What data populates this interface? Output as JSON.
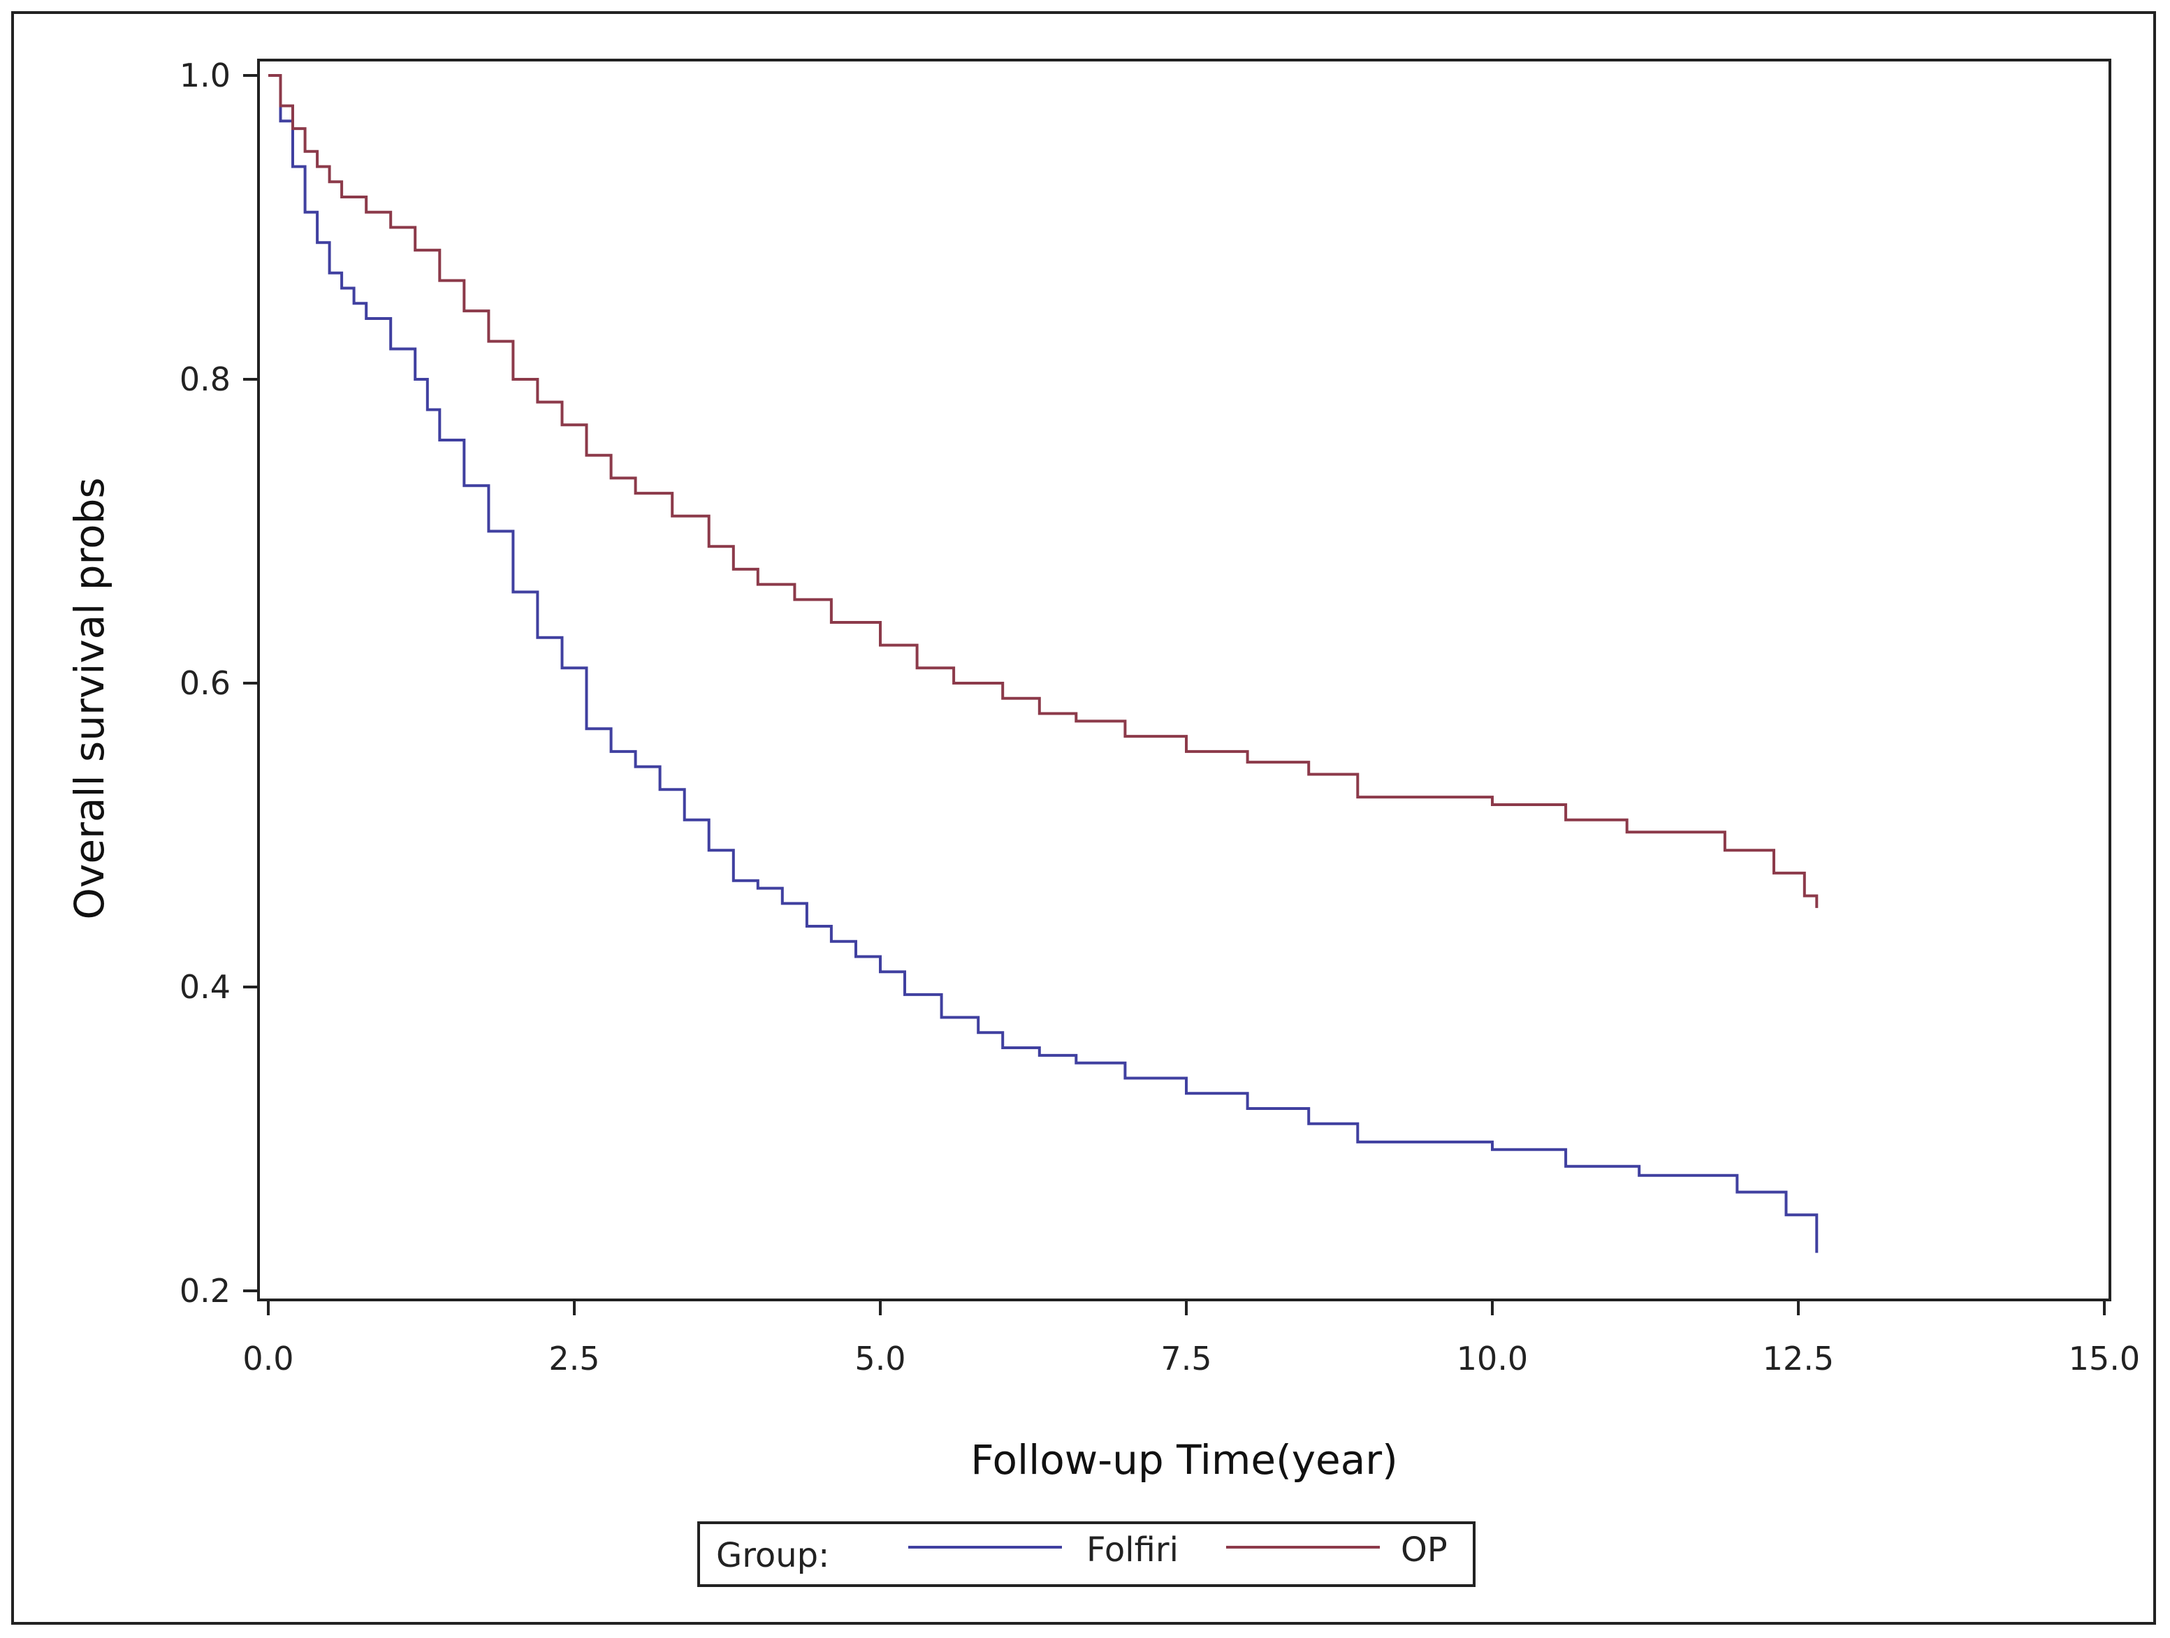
{
  "chart_data": {
    "type": "line",
    "title": "",
    "xlabel": "Follow-up Time(year)",
    "ylabel": "Overall survival probs",
    "xlim": [
      0,
      15
    ],
    "ylim": [
      0.2,
      1.0
    ],
    "x_ticks": [
      "0.0",
      "2.5",
      "5.0",
      "7.5",
      "10.0",
      "12.5",
      "15.0"
    ],
    "y_ticks": [
      "0.2",
      "0.4",
      "0.6",
      "0.8",
      "1.0"
    ],
    "grid": false,
    "legend": {
      "title": "Group:",
      "placement": "bottom"
    },
    "series": [
      {
        "name": "Folfiri",
        "color": "#4040a0",
        "step": true,
        "x": [
          0.0,
          0.1,
          0.2,
          0.3,
          0.4,
          0.5,
          0.6,
          0.7,
          0.8,
          1.0,
          1.2,
          1.3,
          1.4,
          1.6,
          1.8,
          2.0,
          2.2,
          2.4,
          2.6,
          2.8,
          3.0,
          3.2,
          3.4,
          3.6,
          3.8,
          4.0,
          4.2,
          4.4,
          4.6,
          4.8,
          5.0,
          5.2,
          5.5,
          5.8,
          6.0,
          6.3,
          6.6,
          7.0,
          7.5,
          8.0,
          8.5,
          8.9,
          9.5,
          10.0,
          10.6,
          11.2,
          12.0,
          12.4,
          12.65
        ],
        "y": [
          1.0,
          0.97,
          0.94,
          0.91,
          0.89,
          0.87,
          0.86,
          0.85,
          0.84,
          0.82,
          0.8,
          0.78,
          0.76,
          0.73,
          0.7,
          0.66,
          0.63,
          0.61,
          0.57,
          0.555,
          0.545,
          0.53,
          0.51,
          0.49,
          0.47,
          0.465,
          0.455,
          0.44,
          0.43,
          0.42,
          0.41,
          0.395,
          0.38,
          0.37,
          0.36,
          0.355,
          0.35,
          0.34,
          0.33,
          0.32,
          0.31,
          0.298,
          0.298,
          0.293,
          0.282,
          0.276,
          0.265,
          0.25,
          0.225
        ]
      },
      {
        "name": "OP",
        "color": "#8c3a4a",
        "step": true,
        "x": [
          0.0,
          0.1,
          0.2,
          0.3,
          0.4,
          0.5,
          0.6,
          0.8,
          1.0,
          1.2,
          1.4,
          1.6,
          1.8,
          2.0,
          2.2,
          2.4,
          2.6,
          2.8,
          3.0,
          3.3,
          3.6,
          3.8,
          4.0,
          4.3,
          4.6,
          5.0,
          5.3,
          5.6,
          6.0,
          6.3,
          6.6,
          7.0,
          7.5,
          8.0,
          8.5,
          8.9,
          9.5,
          10.0,
          10.6,
          11.1,
          11.9,
          12.3,
          12.55,
          12.65
        ],
        "y": [
          1.0,
          0.98,
          0.965,
          0.95,
          0.94,
          0.93,
          0.92,
          0.91,
          0.9,
          0.885,
          0.865,
          0.845,
          0.825,
          0.8,
          0.785,
          0.77,
          0.75,
          0.735,
          0.725,
          0.71,
          0.69,
          0.675,
          0.665,
          0.655,
          0.64,
          0.625,
          0.61,
          0.6,
          0.59,
          0.58,
          0.575,
          0.565,
          0.555,
          0.548,
          0.54,
          0.525,
          0.525,
          0.52,
          0.51,
          0.502,
          0.49,
          0.475,
          0.46,
          0.452
        ]
      }
    ]
  }
}
